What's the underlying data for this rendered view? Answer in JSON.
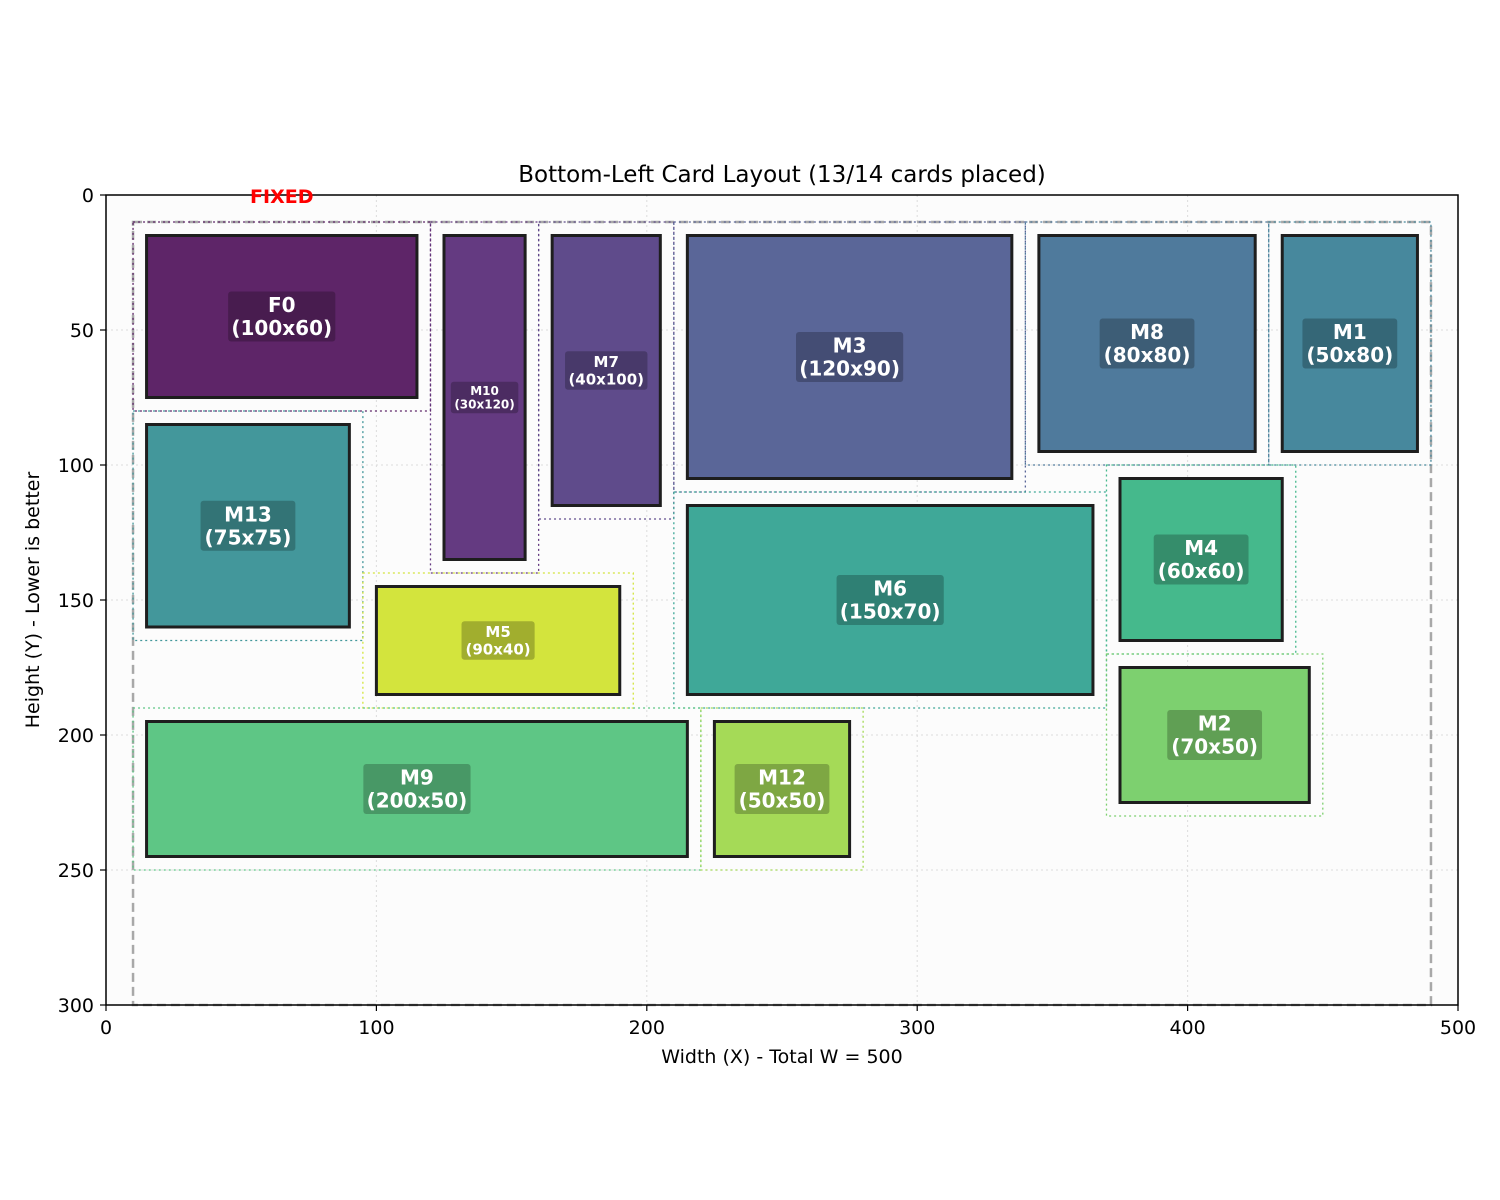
{
  "chart_data": {
    "type": "rectangle-layout",
    "title": "Bottom-Left Card Layout (13/14 cards placed)",
    "xlabel": "Width (X) - Total W = 500",
    "ylabel": "Height (Y) - Lower is better",
    "xlim": [
      0,
      500
    ],
    "ylim": [
      0,
      300
    ],
    "y_inverted": true,
    "grid": true,
    "xticks": [
      "0",
      "100",
      "200",
      "300",
      "400",
      "500"
    ],
    "yticks": [
      "0",
      "50",
      "100",
      "150",
      "200",
      "250",
      "300"
    ],
    "container": {
      "x0": 10,
      "x1": 490,
      "y0": 10,
      "y1": 300
    },
    "fixed_marker": {
      "text": "FIXED",
      "x": 65,
      "y": 0,
      "color": "#ff0000"
    },
    "cards": [
      {
        "id": "F0",
        "label": "F0",
        "size": "(100x60)",
        "x": 15,
        "y": 15,
        "w": 100,
        "h": 60,
        "color": "#5e2568"
      },
      {
        "id": "M10",
        "label": "M10",
        "size": "(30x120)",
        "x": 125,
        "y": 15,
        "w": 30,
        "h": 120,
        "color": "#643a81"
      },
      {
        "id": "M7",
        "label": "M7",
        "size": "(40x100)",
        "x": 165,
        "y": 15,
        "w": 40,
        "h": 100,
        "color": "#5f4b8b"
      },
      {
        "id": "M3",
        "label": "M3",
        "size": "(120x90)",
        "x": 215,
        "y": 15,
        "w": 120,
        "h": 90,
        "color": "#5a6698"
      },
      {
        "id": "M8",
        "label": "M8",
        "size": "(80x80)",
        "x": 345,
        "y": 15,
        "w": 80,
        "h": 80,
        "color": "#4f7a9c"
      },
      {
        "id": "M1",
        "label": "M1",
        "size": "(50x80)",
        "x": 435,
        "y": 15,
        "w": 50,
        "h": 80,
        "color": "#47889d"
      },
      {
        "id": "M13",
        "label": "M13",
        "size": "(75x75)",
        "x": 15,
        "y": 85,
        "w": 75,
        "h": 75,
        "color": "#43979b"
      },
      {
        "id": "M6",
        "label": "M6",
        "size": "(150x70)",
        "x": 215,
        "y": 115,
        "w": 150,
        "h": 70,
        "color": "#3fa898"
      },
      {
        "id": "M4",
        "label": "M4",
        "size": "(60x60)",
        "x": 375,
        "y": 105,
        "w": 60,
        "h": 60,
        "color": "#45b98c"
      },
      {
        "id": "M5",
        "label": "M5",
        "size": "(90x40)",
        "x": 100,
        "y": 145,
        "w": 90,
        "h": 40,
        "color": "#d3e43d"
      },
      {
        "id": "M2",
        "label": "M2",
        "size": "(70x50)",
        "x": 375,
        "y": 175,
        "w": 70,
        "h": 50,
        "color": "#7dd06f"
      },
      {
        "id": "M9",
        "label": "M9",
        "size": "(200x50)",
        "x": 15,
        "y": 195,
        "w": 200,
        "h": 50,
        "color": "#5ec685"
      },
      {
        "id": "M12",
        "label": "M12",
        "size": "(50x50)",
        "x": 225,
        "y": 195,
        "w": 50,
        "h": 50,
        "color": "#a5da57"
      }
    ]
  }
}
